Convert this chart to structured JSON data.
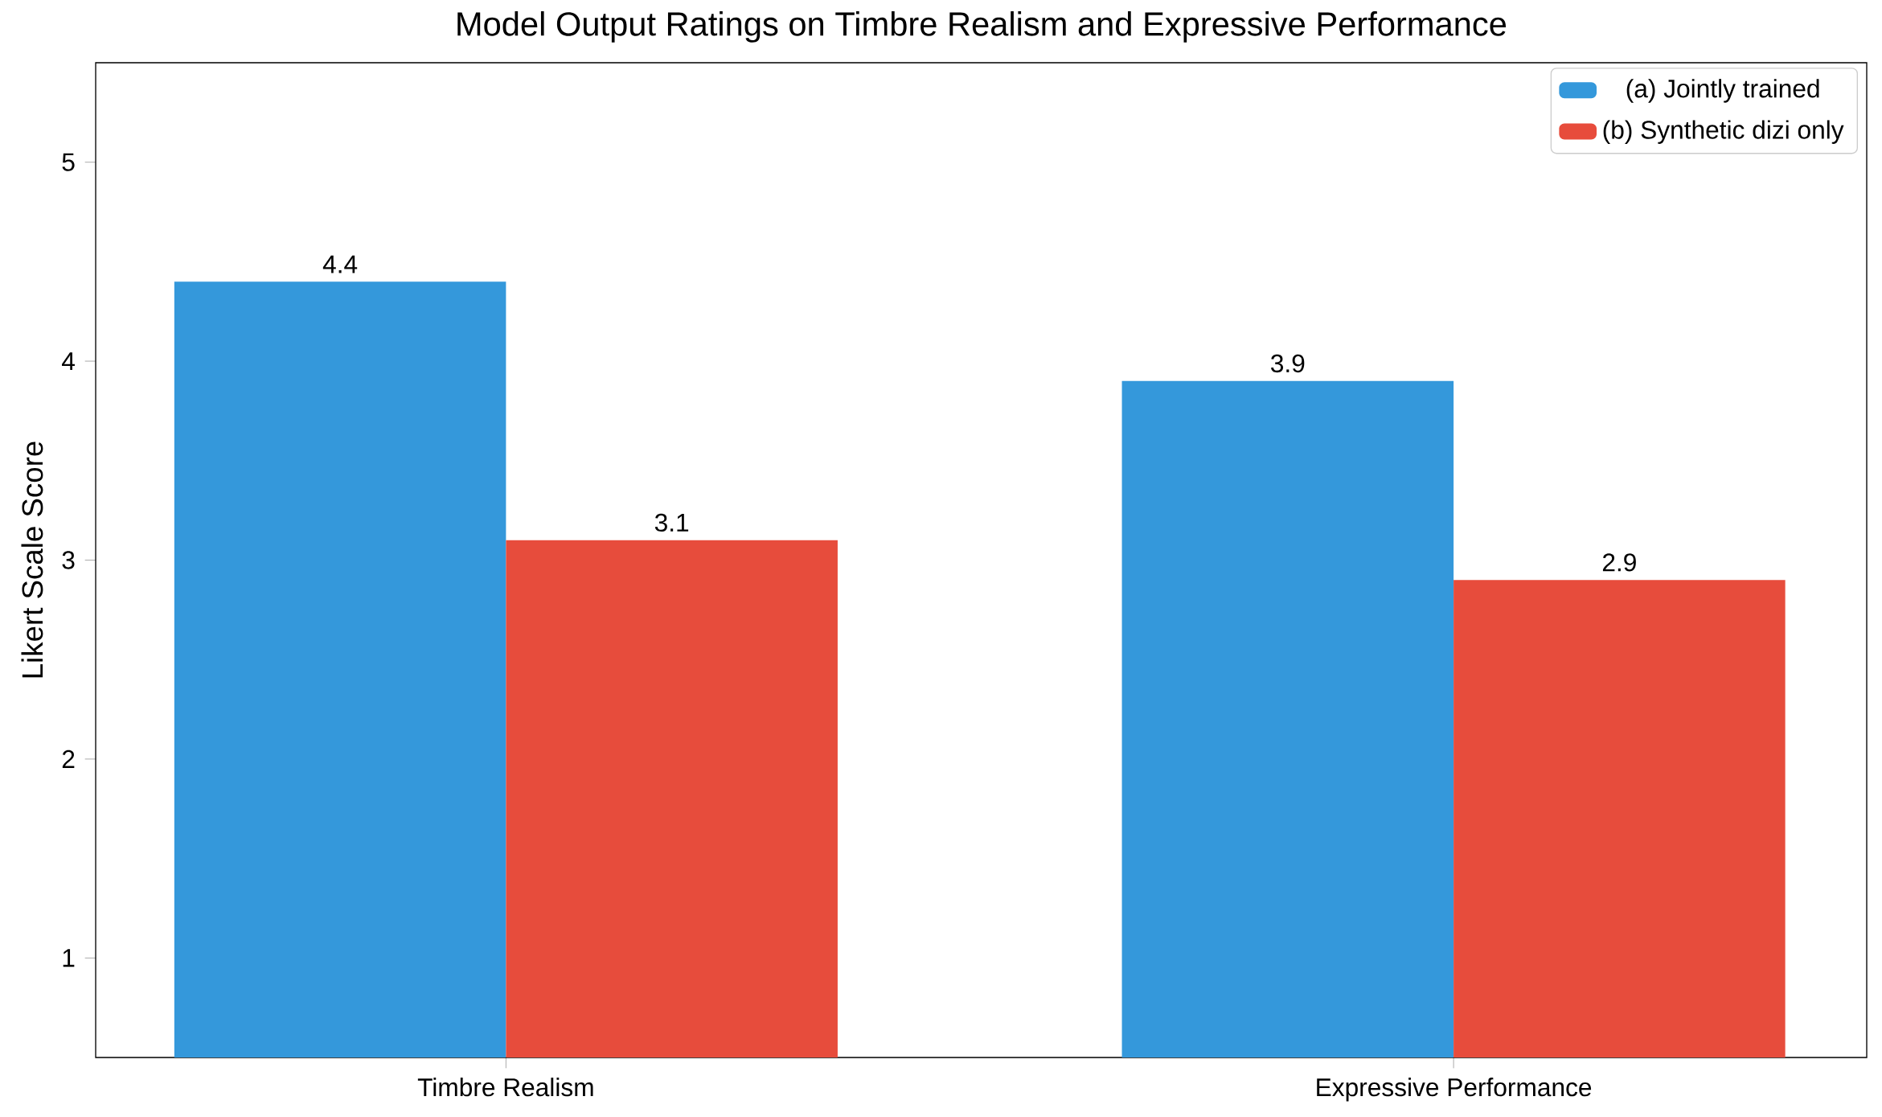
{
  "chart_data": {
    "type": "bar",
    "title": "Model Output Ratings on Timbre Realism and Expressive Performance",
    "ylabel": "Likert Scale Score",
    "categories": [
      "Timbre Realism",
      "Expressive Performance"
    ],
    "series": [
      {
        "name": "(a) Jointly trained",
        "color": "#3498db",
        "values": [
          4.4,
          3.9
        ]
      },
      {
        "name": "(b) Synthetic dizi only",
        "color": "#e74c3c",
        "values": [
          3.1,
          2.9
        ]
      }
    ],
    "ylim": [
      0.5,
      5.5
    ],
    "yticks": [
      1,
      2,
      3,
      4,
      5
    ],
    "data_labels": true,
    "legend": "top right",
    "grid": false
  }
}
